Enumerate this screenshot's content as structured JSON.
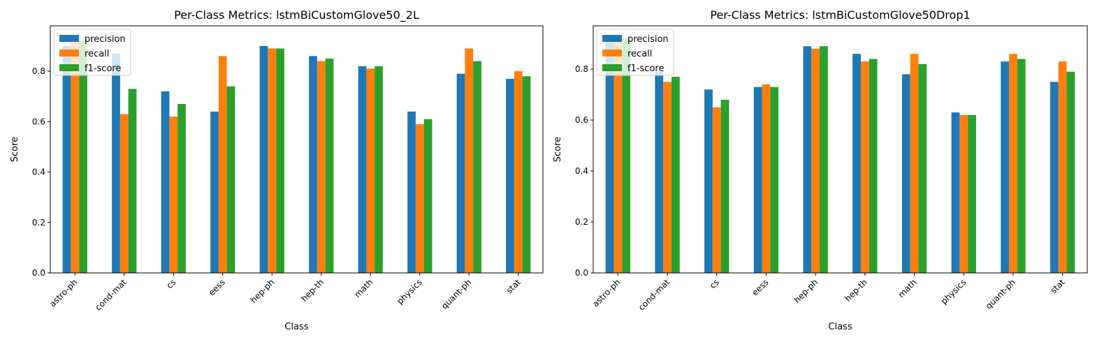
{
  "chart_data": [
    {
      "type": "bar",
      "title": "Per-Class Metrics: lstmBiCustomGlove50_2L",
      "xlabel": "Class",
      "ylabel": "Score",
      "ylim": [
        0,
        0.98
      ],
      "yticks": [
        "0.0",
        "0.2",
        "0.4",
        "0.6",
        "0.8"
      ],
      "legend_position": "top-left",
      "grid": false,
      "categories": [
        "astro-ph",
        "cond-mat",
        "cs",
        "eess",
        "hep-ph",
        "hep-th",
        "math",
        "physics",
        "quant-ph",
        "stat"
      ],
      "series": [
        {
          "name": "precision",
          "color": "#1f77b4",
          "values": [
            0.9,
            0.87,
            0.72,
            0.64,
            0.9,
            0.86,
            0.82,
            0.64,
            0.79,
            0.77
          ]
        },
        {
          "name": "recall",
          "color": "#ff7f0e",
          "values": [
            0.93,
            0.63,
            0.62,
            0.86,
            0.89,
            0.84,
            0.81,
            0.59,
            0.89,
            0.8
          ]
        },
        {
          "name": "f1-score",
          "color": "#2ca02c",
          "values": [
            0.92,
            0.73,
            0.67,
            0.74,
            0.89,
            0.85,
            0.82,
            0.61,
            0.84,
            0.78
          ]
        }
      ]
    },
    {
      "type": "bar",
      "title": "Per-Class Metrics: lstmBiCustomGlove50Drop1",
      "xlabel": "Class",
      "ylabel": "Score",
      "ylim": [
        0,
        0.97
      ],
      "yticks": [
        "0.0",
        "0.2",
        "0.4",
        "0.6",
        "0.8"
      ],
      "legend_position": "top-left",
      "grid": false,
      "categories": [
        "astro-ph",
        "cond-mat",
        "cs",
        "eess",
        "hep-ph",
        "hep-th",
        "math",
        "physics",
        "quant-ph",
        "stat"
      ],
      "series": [
        {
          "name": "precision",
          "color": "#1f77b4",
          "values": [
            0.92,
            0.79,
            0.72,
            0.73,
            0.89,
            0.86,
            0.78,
            0.63,
            0.83,
            0.75
          ]
        },
        {
          "name": "recall",
          "color": "#ff7f0e",
          "values": [
            0.92,
            0.75,
            0.65,
            0.74,
            0.88,
            0.83,
            0.86,
            0.62,
            0.86,
            0.83
          ]
        },
        {
          "name": "f1-score",
          "color": "#2ca02c",
          "values": [
            0.92,
            0.77,
            0.68,
            0.73,
            0.89,
            0.84,
            0.82,
            0.62,
            0.84,
            0.79
          ]
        }
      ]
    }
  ]
}
